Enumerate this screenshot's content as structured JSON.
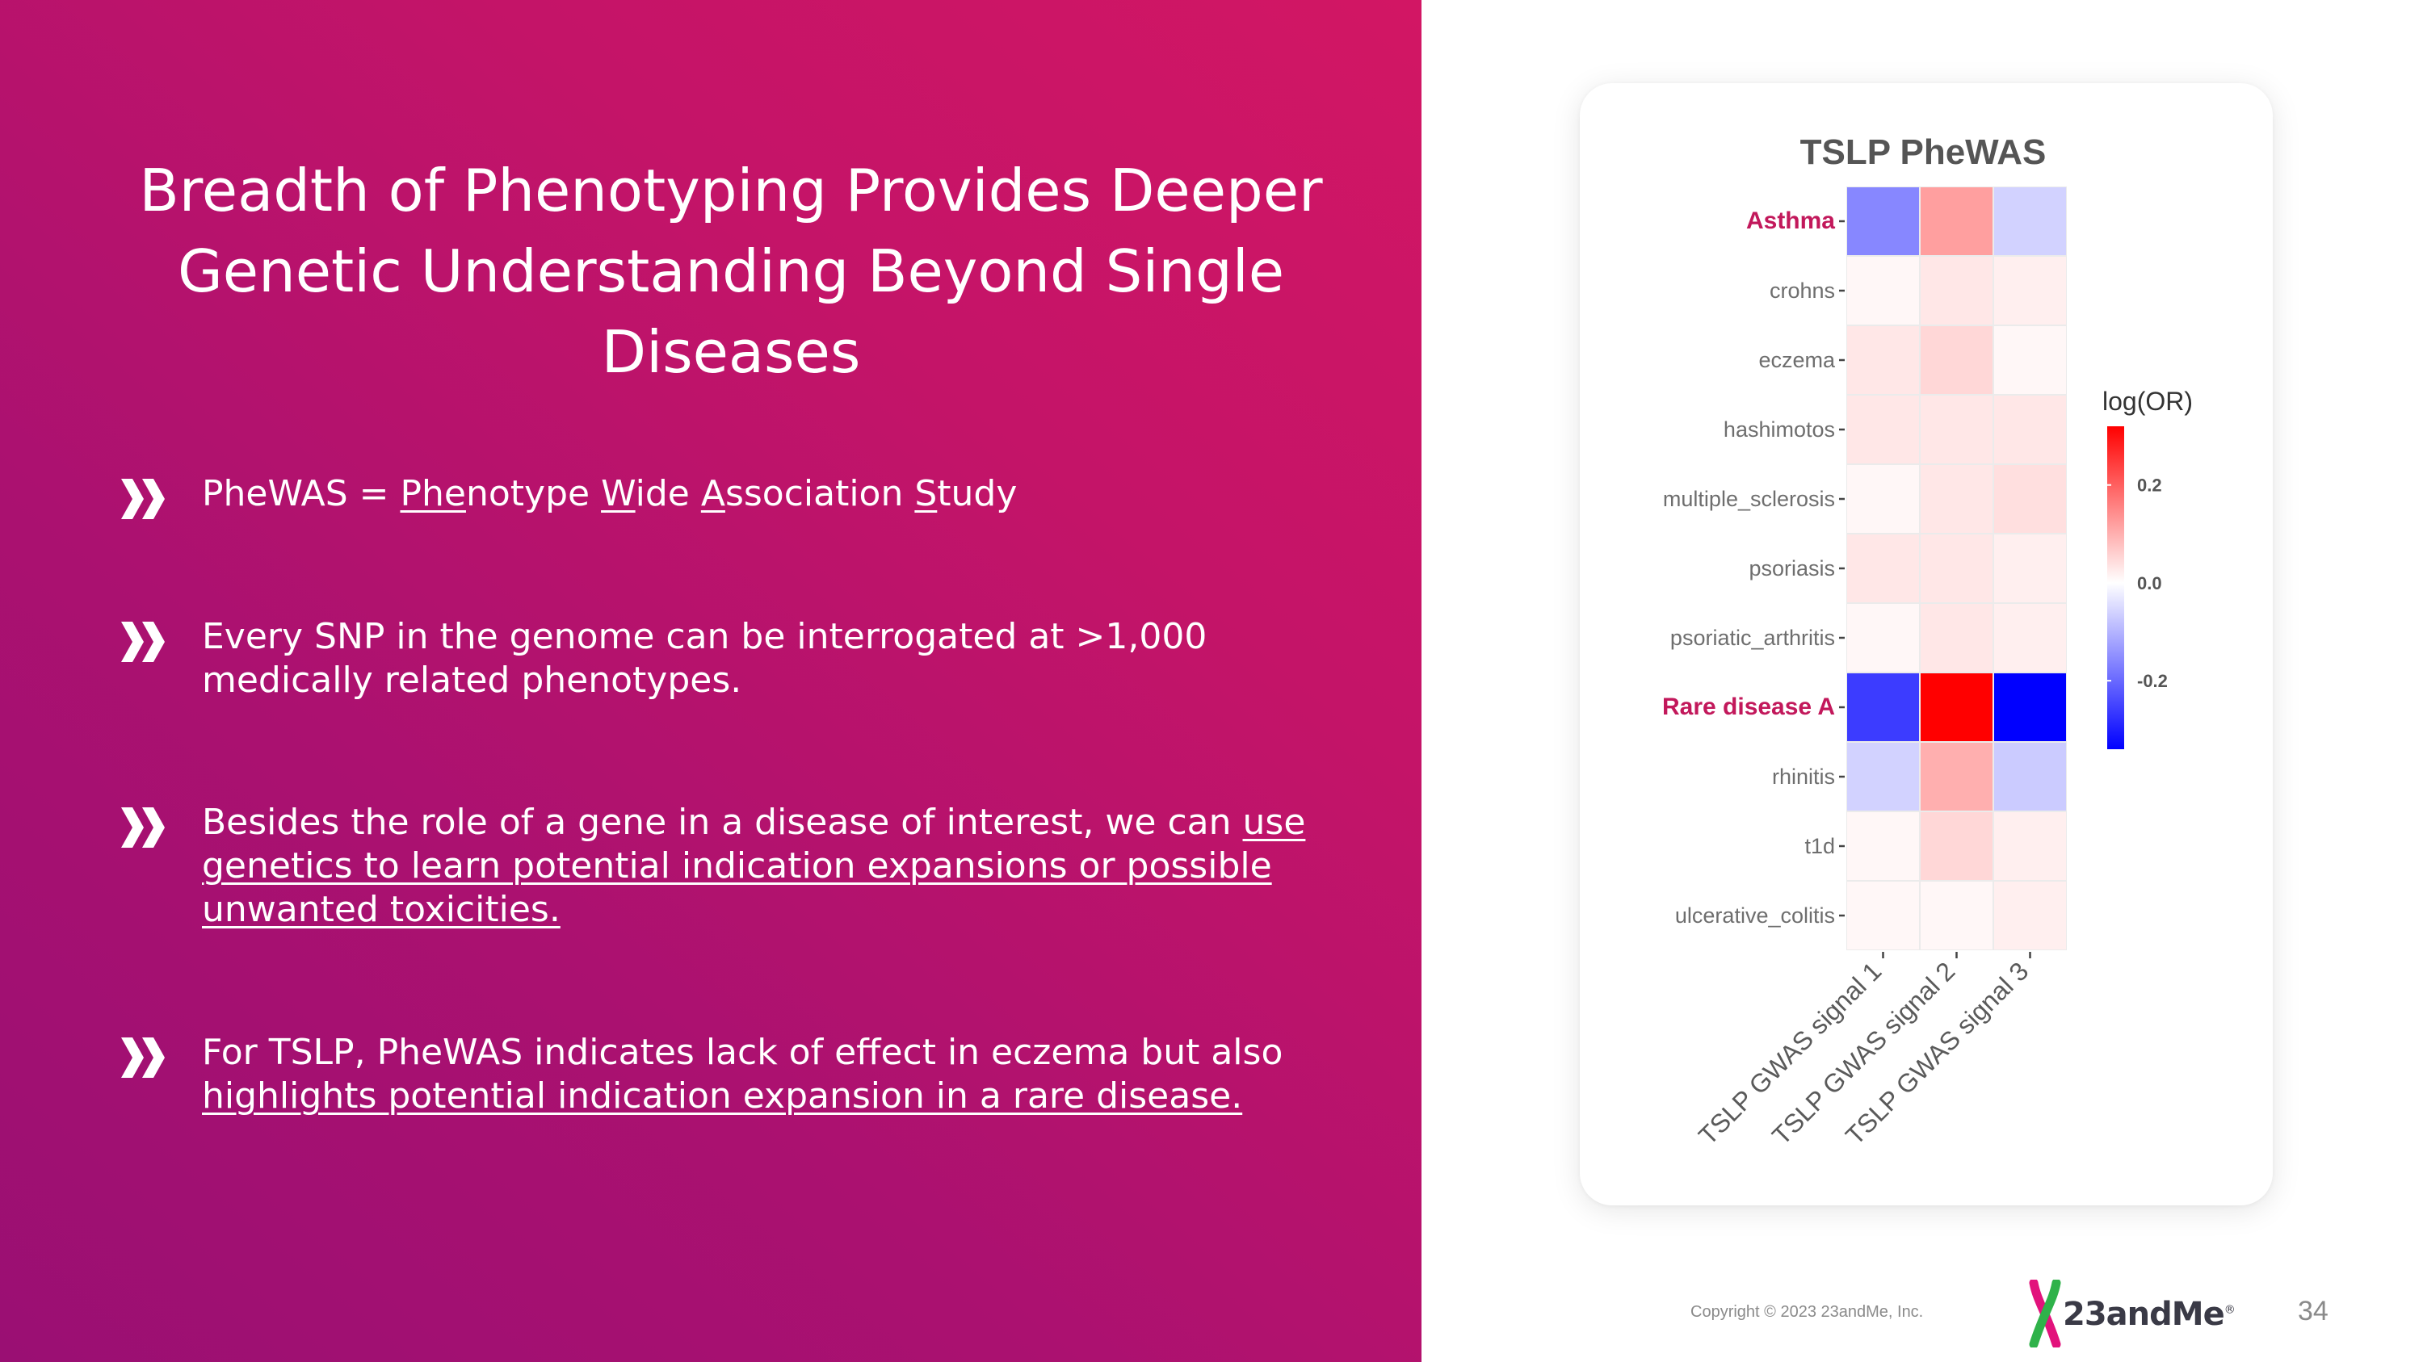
{
  "slide": {
    "title": "Breadth of Phenotyping Provides Deeper Genetic Understanding Beyond Single Diseases",
    "page_number": "34",
    "copyright": "Copyright © 2023 23andMe, Inc.",
    "logo_text": "23andMe",
    "logo_reg": "®"
  },
  "bullets": [
    {
      "icon": "double-chevron-icon",
      "segments": [
        {
          "text": "PheWAS = ",
          "u": false
        },
        {
          "text": "Phe",
          "u": true
        },
        {
          "text": "notype ",
          "u": false
        },
        {
          "text": "W",
          "u": true
        },
        {
          "text": "ide ",
          "u": false
        },
        {
          "text": "A",
          "u": true
        },
        {
          "text": "ssociation ",
          "u": false
        },
        {
          "text": "S",
          "u": true
        },
        {
          "text": "tudy",
          "u": false
        }
      ]
    },
    {
      "icon": "double-chevron-icon",
      "segments": [
        {
          "text": "Every SNP in the genome can be interrogated at >1,000 medically related phenotypes.",
          "u": false
        }
      ]
    },
    {
      "icon": "double-chevron-icon",
      "segments": [
        {
          "text": "Besides the role of a gene in a disease of interest, we can ",
          "u": false
        },
        {
          "text": "use genetics to learn potential indication expansions or possible unwanted toxicities.",
          "u": true
        }
      ]
    },
    {
      "icon": "double-chevron-icon",
      "segments": [
        {
          "text": "For TSLP, PheWAS indicates lack of effect in eczema but also ",
          "u": false
        },
        {
          "text": "highlights potential indication expansion in a rare disease.",
          "u": true
        }
      ]
    }
  ],
  "chart_data": {
    "type": "heatmap",
    "title": "TSLP PheWAS",
    "rows": [
      "Asthma",
      "crohns",
      "eczema",
      "hashimotos",
      "multiple_sclerosis",
      "psoriasis",
      "psoriatic_arthritis",
      "Rare disease A",
      "rhinitis",
      "t1d",
      "ulcerative_colitis"
    ],
    "highlighted_rows": [
      "Asthma",
      "Rare disease A"
    ],
    "columns": [
      "TSLP GWAS signal 1",
      "TSLP GWAS signal 2",
      "TSLP GWAS signal 3"
    ],
    "values": [
      [
        -0.16,
        0.12,
        -0.06
      ],
      [
        0.01,
        0.03,
        0.02
      ],
      [
        0.03,
        0.05,
        0.01
      ],
      [
        0.03,
        0.03,
        0.03
      ],
      [
        0.01,
        0.03,
        0.04
      ],
      [
        0.03,
        0.03,
        0.02
      ],
      [
        0.01,
        0.03,
        0.02
      ],
      [
        -0.26,
        0.32,
        -0.34
      ],
      [
        -0.06,
        0.1,
        -0.07
      ],
      [
        0.01,
        0.05,
        0.02
      ],
      [
        0.01,
        0.01,
        0.02
      ]
    ],
    "legend_title": "log(OR)",
    "legend_ticks": [
      0.2,
      0.0,
      -0.2
    ],
    "legend_tick_labels": [
      "0.2",
      "0.0",
      "-0.2"
    ],
    "color_min": -0.34,
    "color_max": 0.32,
    "colors": {
      "low": "#0000ff",
      "mid": "#ffffff",
      "high": "#ff0000",
      "highlight_label": "#c2185b",
      "label": "#6e6e6e"
    }
  }
}
